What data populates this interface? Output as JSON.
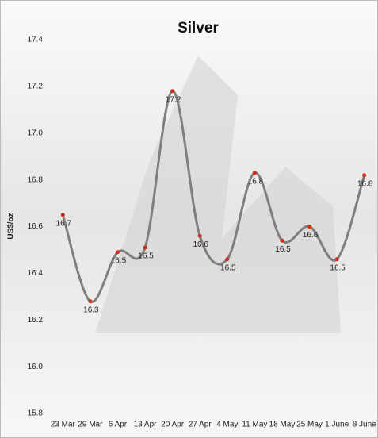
{
  "chart_data": {
    "type": "line",
    "title": "Silver",
    "y_label": "US$/oz",
    "categories": [
      "23 Mar",
      "29 Mar",
      "6 Apr",
      "13 Apr",
      "20 Apr",
      "27 Apr",
      "4 May",
      "11 May",
      "18 May",
      "25 May",
      "1 June",
      "8 June"
    ],
    "values": [
      16.65,
      16.28,
      16.49,
      16.51,
      17.18,
      16.56,
      16.46,
      16.83,
      16.54,
      16.6,
      16.46,
      16.82
    ],
    "value_labels": [
      "16.7",
      "16.3",
      "16.5",
      "16.5",
      "17.2",
      "16.6",
      "16.5",
      "16.8",
      "16.5",
      "16.6",
      "16.5",
      "16.8"
    ],
    "color": "#7f7f7f",
    "marker_color": "#d62a0f",
    "ylim": [
      15.8,
      17.4
    ],
    "yticks": [
      {
        "value": 15.8,
        "label": "15.8"
      },
      {
        "value": 16,
        "label": "16.0"
      },
      {
        "value": 16.2,
        "label": "16.2"
      },
      {
        "value": 16.4,
        "label": "16.4"
      },
      {
        "value": 16.6,
        "label": "16.6"
      },
      {
        "value": 16.8,
        "label": "16.8"
      },
      {
        "value": 17,
        "label": "17.0"
      },
      {
        "value": 17.2,
        "label": "17.2"
      },
      {
        "value": 17.4,
        "label": "17.4"
      }
    ]
  }
}
